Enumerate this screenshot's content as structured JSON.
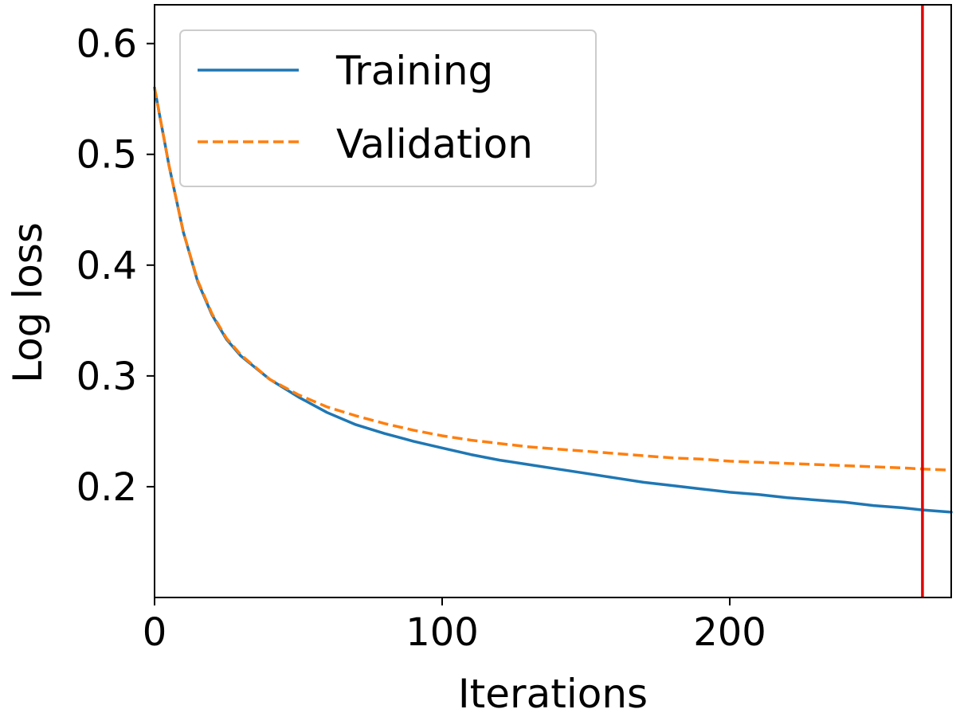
{
  "chart_data": {
    "type": "line",
    "title": "",
    "xlabel": "Iterations",
    "ylabel": "Log loss",
    "xlim": [
      0,
      277
    ],
    "ylim": [
      0.1,
      0.635
    ],
    "xticks": [
      0,
      100,
      200
    ],
    "xtick_labels": [
      "0",
      "100",
      "200"
    ],
    "yticks": [
      0.2,
      0.3,
      0.4,
      0.5,
      0.6
    ],
    "ytick_labels": [
      "0.2",
      "0.3",
      "0.4",
      "0.5",
      "0.6"
    ],
    "grid": false,
    "legend_position": "top-left",
    "vline": {
      "x": 267,
      "color": "#e00000"
    },
    "series": [
      {
        "name": "Training",
        "color": "#1f77b4",
        "style": "solid",
        "x": [
          0,
          5,
          10,
          15,
          20,
          25,
          30,
          40,
          50,
          60,
          70,
          80,
          90,
          100,
          110,
          120,
          130,
          140,
          150,
          160,
          170,
          180,
          190,
          200,
          210,
          220,
          230,
          240,
          250,
          260,
          267,
          277
        ],
        "y": [
          0.56,
          0.49,
          0.43,
          0.385,
          0.355,
          0.333,
          0.318,
          0.297,
          0.281,
          0.267,
          0.256,
          0.248,
          0.241,
          0.235,
          0.229,
          0.224,
          0.22,
          0.216,
          0.212,
          0.208,
          0.204,
          0.201,
          0.198,
          0.195,
          0.193,
          0.19,
          0.188,
          0.186,
          0.183,
          0.181,
          0.179,
          0.177
        ]
      },
      {
        "name": "Validation",
        "color": "#ff7f0e",
        "style": "dashed",
        "x": [
          0,
          5,
          10,
          15,
          20,
          25,
          30,
          40,
          50,
          60,
          70,
          80,
          90,
          100,
          110,
          120,
          130,
          140,
          150,
          160,
          170,
          180,
          190,
          200,
          210,
          220,
          230,
          240,
          250,
          260,
          267,
          277
        ],
        "y": [
          0.56,
          0.49,
          0.43,
          0.386,
          0.356,
          0.334,
          0.319,
          0.297,
          0.283,
          0.272,
          0.264,
          0.257,
          0.251,
          0.246,
          0.242,
          0.239,
          0.236,
          0.234,
          0.232,
          0.23,
          0.228,
          0.226,
          0.225,
          0.223,
          0.222,
          0.221,
          0.22,
          0.219,
          0.218,
          0.217,
          0.216,
          0.215
        ]
      }
    ]
  }
}
